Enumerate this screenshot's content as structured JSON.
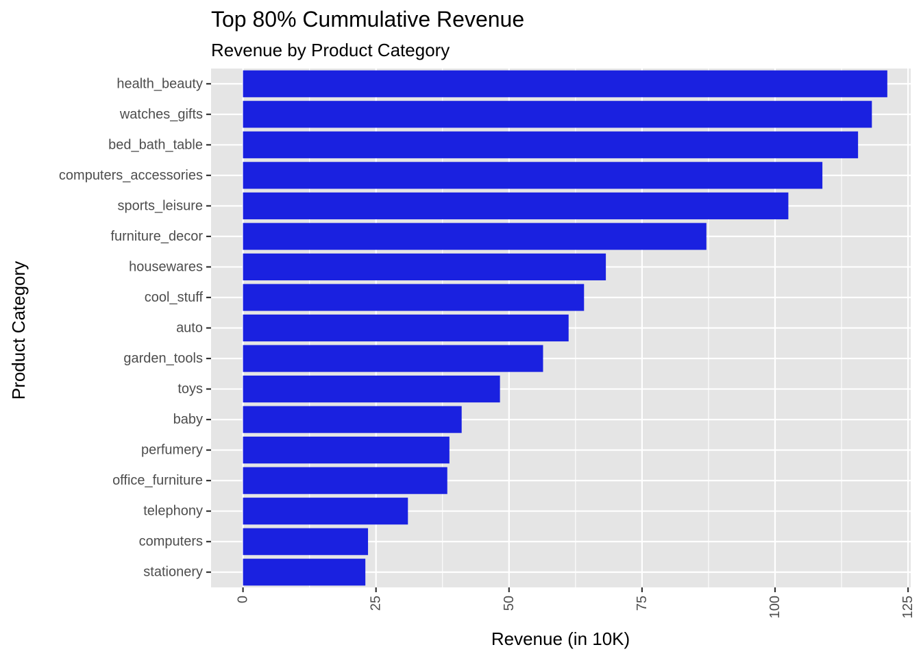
{
  "chart_data": {
    "type": "bar",
    "orientation": "horizontal",
    "title": "Top 80% Cummulative Revenue",
    "subtitle": "Revenue by Product Category",
    "xlabel": "Revenue (in 10K)",
    "ylabel": "Product Category",
    "categories": [
      "health_beauty",
      "watches_gifts",
      "bed_bath_table",
      "computers_accessories",
      "sports_leisure",
      "furniture_decor",
      "housewares",
      "cool_stuff",
      "auto",
      "garden_tools",
      "toys",
      "baby",
      "perfumery",
      "office_furniture",
      "telephony",
      "computers",
      "stationery"
    ],
    "values": [
      121.1,
      118.2,
      115.6,
      108.9,
      102.5,
      87.1,
      68.2,
      64.1,
      61.2,
      56.4,
      48.3,
      41.1,
      38.8,
      38.4,
      31.0,
      23.5,
      23.0
    ],
    "xlim": [
      -6,
      125.5
    ],
    "xticks": [
      0,
      25,
      50,
      75,
      100,
      125
    ],
    "xtick_labels": [
      "0",
      "25",
      "50",
      "75",
      "100",
      "125"
    ],
    "bar_color": "#1a21e0",
    "panel_color": "#e5e5e5",
    "grid_color": "#ffffff",
    "grid": true,
    "legend": "none"
  }
}
